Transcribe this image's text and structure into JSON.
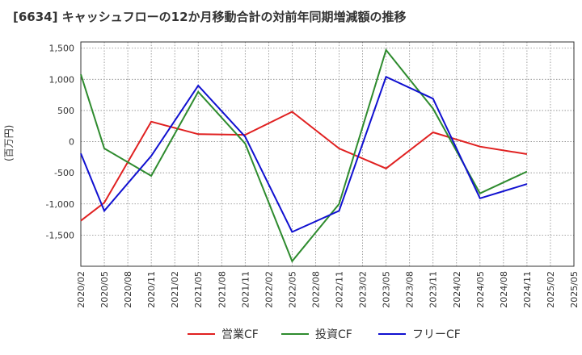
{
  "chart_data": {
    "type": "line",
    "title": "[6634]  キャッシュフローの12か月移動合計の対前年同期増減額の推移",
    "ylabel": "(百万円)",
    "xlabel": "",
    "ylim": [
      -2000,
      1600
    ],
    "yticks": [
      1500,
      1000,
      500,
      0,
      -500,
      -1000,
      -1500
    ],
    "ytick_labels": [
      "1,500",
      "1,000",
      "500",
      "0",
      "-500",
      "-1,000",
      "-1,500"
    ],
    "x_categories": [
      "2020/02",
      "2020/05",
      "2020/08",
      "2020/11",
      "2021/02",
      "2021/05",
      "2021/08",
      "2021/11",
      "2022/02",
      "2022/05",
      "2022/08",
      "2022/11",
      "2023/02",
      "2023/05",
      "2023/08",
      "2023/11",
      "2024/02",
      "2024/05",
      "2024/08",
      "2024/11",
      "2025/02",
      "2025/05"
    ],
    "grid": true,
    "legend_position": "bottom",
    "series": [
      {
        "name": "営業CF",
        "color": "#e02020",
        "points": [
          [
            0,
            -1270
          ],
          [
            1,
            -980
          ],
          [
            3,
            320
          ],
          [
            5,
            120
          ],
          [
            7,
            110
          ],
          [
            9,
            480
          ],
          [
            11,
            -110
          ],
          [
            13,
            -430
          ],
          [
            15,
            150
          ],
          [
            17,
            -80
          ],
          [
            19,
            -200
          ]
        ]
      },
      {
        "name": "投資CF",
        "color": "#2e8b2e",
        "points": [
          [
            0,
            1080
          ],
          [
            1,
            -110
          ],
          [
            3,
            -550
          ],
          [
            5,
            800
          ],
          [
            7,
            -30
          ],
          [
            9,
            -1920
          ],
          [
            11,
            -1000
          ],
          [
            13,
            1470
          ],
          [
            15,
            530
          ],
          [
            17,
            -830
          ],
          [
            19,
            -480
          ]
        ]
      },
      {
        "name": "フリーCF",
        "color": "#1010d0",
        "points": [
          [
            0,
            -190
          ],
          [
            1,
            -1110
          ],
          [
            3,
            -230
          ],
          [
            5,
            900
          ],
          [
            7,
            80
          ],
          [
            9,
            -1450
          ],
          [
            11,
            -1110
          ],
          [
            13,
            1040
          ],
          [
            15,
            690
          ],
          [
            17,
            -910
          ],
          [
            19,
            -680
          ]
        ]
      }
    ]
  }
}
